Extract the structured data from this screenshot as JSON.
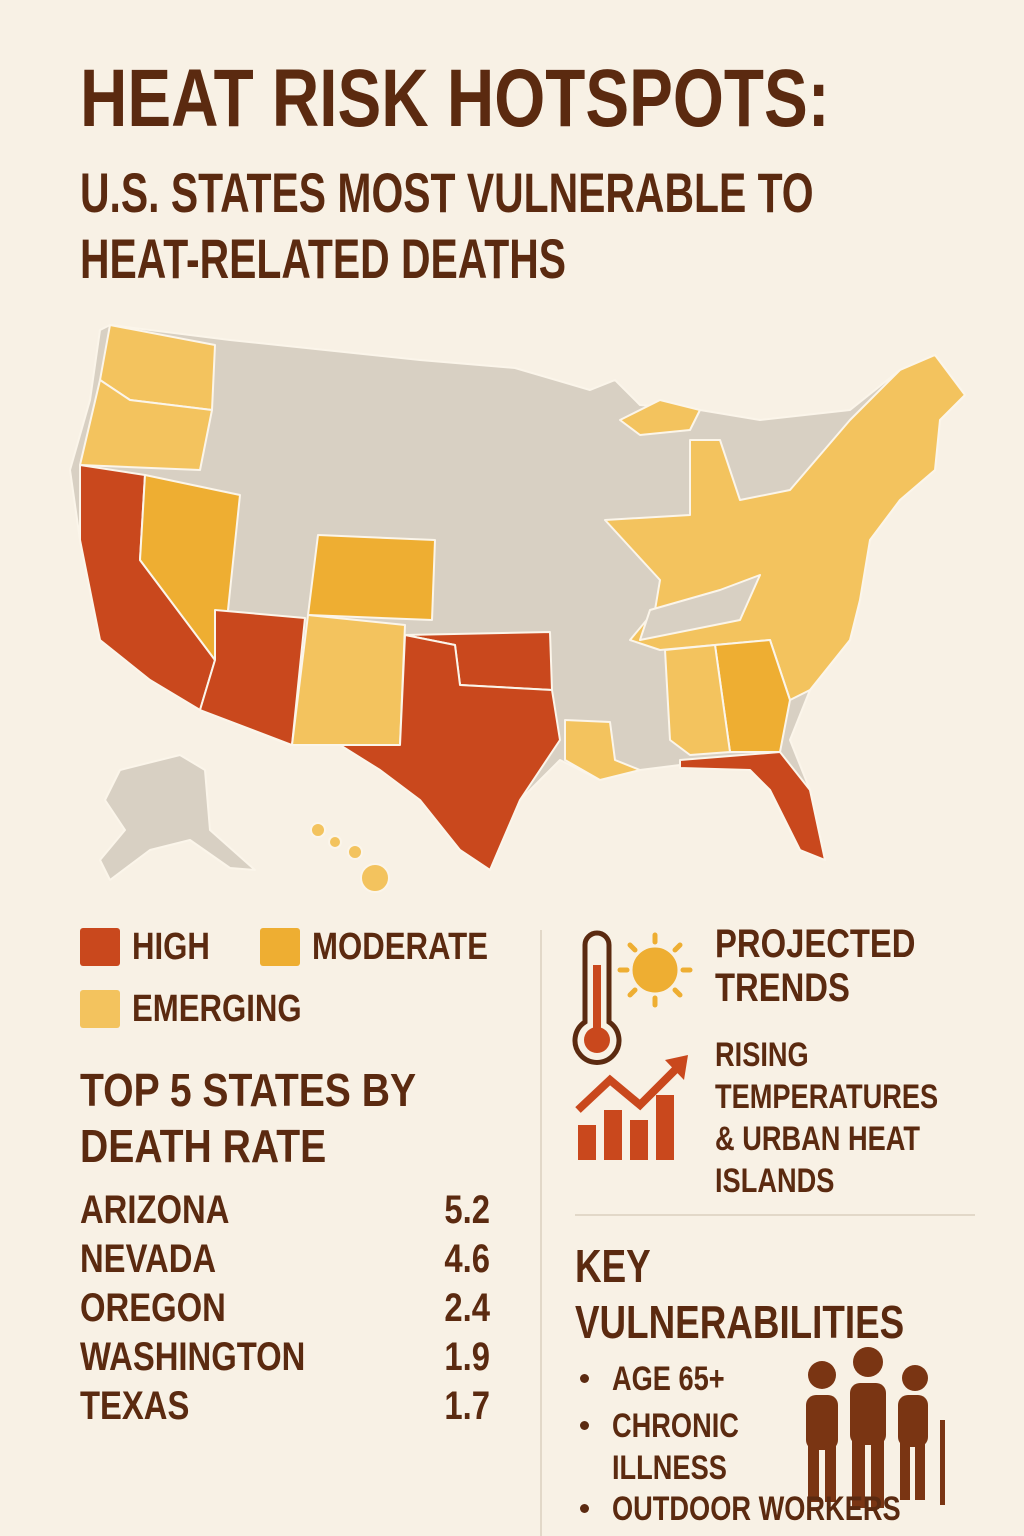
{
  "header": {
    "title": "HEAT RISK HOTSPOTS:",
    "subtitle": "U.S. STATES MOST VULNERABLE TO HEAT-RELATED DEATHS"
  },
  "legend": [
    {
      "label": "HIGH",
      "color": "#c9481d"
    },
    {
      "label": "MODERATE",
      "color": "#eeae32"
    },
    {
      "label": "EMERGING",
      "color": "#f3c35e"
    }
  ],
  "top_states": {
    "title": "TOP 5 STATES BY DEATH RATE",
    "rows": [
      {
        "state": "ARIZONA",
        "rate": 5.2
      },
      {
        "state": "NEVADA",
        "rate": 4.6
      },
      {
        "state": "OREGON",
        "rate": 2.4
      },
      {
        "state": "WASHINGTON",
        "rate": 1.9
      },
      {
        "state": "TEXAS",
        "rate": 1.7
      }
    ]
  },
  "trends": {
    "title": "PROJECTED TRENDS",
    "text": "RISING TEMPERATURES & URBAN HEAT ISLANDS"
  },
  "vulnerabilities": {
    "title": "KEY VULNERABILITIES",
    "items": [
      "AGE 65+",
      "CHRONIC ILLNESS",
      "OUTDOOR WORKERS"
    ]
  }
}
